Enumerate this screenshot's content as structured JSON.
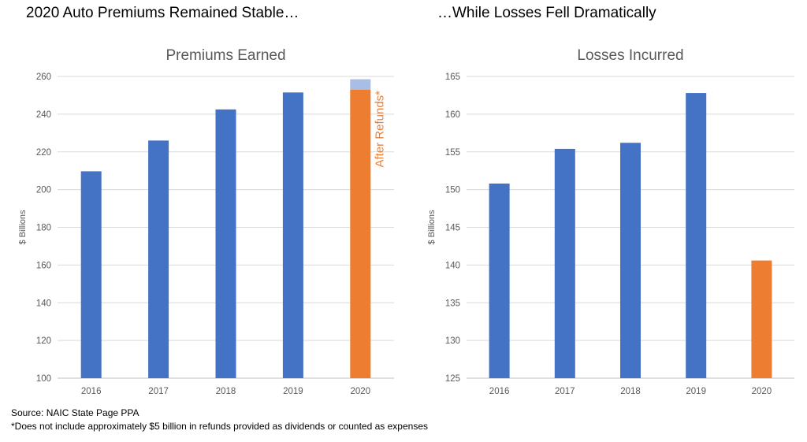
{
  "headlines": {
    "left": "2020 Auto Premiums Remained Stable…",
    "right": "…While Losses Fell Dramatically"
  },
  "chart_data": [
    {
      "type": "bar",
      "title": "Premiums Earned",
      "ylabel": "$ Billions",
      "xlabel": "",
      "categories": [
        "2016",
        "2017",
        "2018",
        "2019",
        "2020"
      ],
      "values": [
        209.7,
        226,
        242.5,
        251.5,
        258.5
      ],
      "after_refunds_2020": 253,
      "annotation": "After Refunds*",
      "ylim": [
        100,
        260
      ],
      "yticks": [
        100,
        120,
        140,
        160,
        180,
        200,
        220,
        240,
        260
      ],
      "grid": true,
      "legend": "none",
      "colors": {
        "bar": "#4472C4",
        "highlight": "#ED7D31",
        "refund_portion": "#A9BEE7"
      }
    },
    {
      "type": "bar",
      "title": "Losses Incurred",
      "ylabel": "$ Billions",
      "xlabel": "",
      "categories": [
        "2016",
        "2017",
        "2018",
        "2019",
        "2020"
      ],
      "values": [
        150.8,
        155.4,
        156.2,
        162.8,
        140.6
      ],
      "ylim": [
        125,
        165
      ],
      "yticks": [
        125,
        130,
        135,
        140,
        145,
        150,
        155,
        160,
        165
      ],
      "grid": true,
      "legend": "none",
      "colors": {
        "bar": "#4472C4",
        "highlight": "#ED7D31"
      }
    }
  ],
  "footnotes": {
    "source": "Source: NAIC State Page PPA",
    "note": "*Does not include approximately $5 billion in refunds provided as dividends or counted as expenses"
  }
}
